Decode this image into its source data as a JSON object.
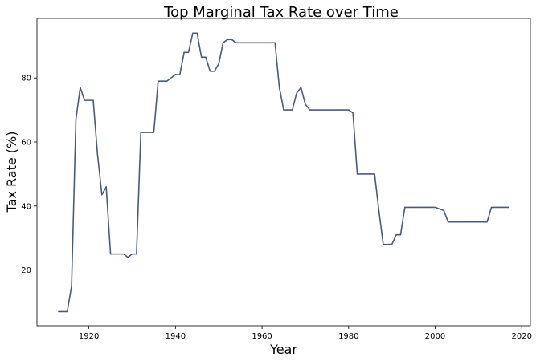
{
  "chart_data": {
    "type": "line",
    "title": "Top Marginal Tax Rate over Time",
    "xlabel": "Year",
    "ylabel": "Tax Rate (%)",
    "xlim": [
      1908,
      2022
    ],
    "ylim": [
      2.6,
      98.6
    ],
    "xticks": [
      1920,
      1940,
      1960,
      1980,
      2000,
      2020
    ],
    "yticks": [
      20,
      40,
      60,
      80
    ],
    "grid": false,
    "legend": "none",
    "line_color": "#4a5b78",
    "series": [
      {
        "x": [
          1913,
          1915,
          1916,
          1917,
          1918,
          1919,
          1921,
          1922,
          1923,
          1924,
          1925,
          1926,
          1928,
          1929,
          1930,
          1931,
          1932,
          1935,
          1936,
          1937,
          1938,
          1940,
          1941,
          1942,
          1943,
          1944,
          1945,
          1946,
          1947,
          1948,
          1949,
          1950,
          1951,
          1952,
          1953,
          1954,
          1955,
          1960,
          1963,
          1964,
          1965,
          1967,
          1968,
          1969,
          1970,
          1971,
          1980,
          1981,
          1982,
          1986,
          1987,
          1988,
          1990,
          1991,
          1992,
          1993,
          2000,
          2001,
          2002,
          2003,
          2012,
          2013,
          2017
        ],
        "y": [
          7,
          7,
          15,
          67,
          77,
          73,
          73,
          56,
          43.5,
          46,
          25,
          25,
          25,
          24,
          25,
          25,
          63,
          63,
          79,
          79,
          79,
          81.1,
          81,
          88,
          88,
          94,
          94,
          86.5,
          86.5,
          82.1,
          82.1,
          84.4,
          91,
          92,
          92,
          91,
          91,
          91,
          91,
          77,
          70,
          70,
          75.3,
          77,
          71.8,
          70,
          70,
          69.1,
          50,
          50,
          38.5,
          28,
          28,
          31,
          31,
          39.6,
          39.6,
          39.1,
          38.6,
          35,
          35,
          39.6,
          39.6
        ]
      }
    ]
  }
}
